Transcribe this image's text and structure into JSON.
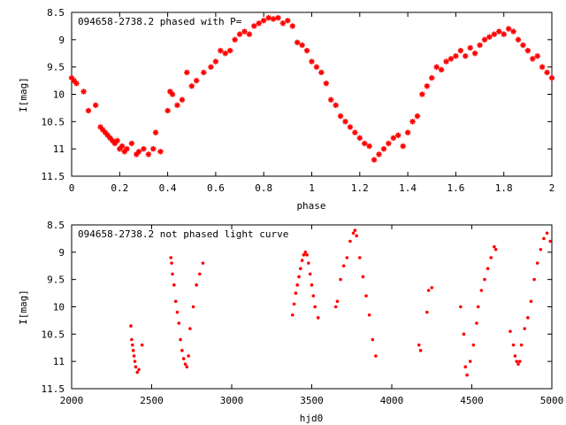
{
  "chart_data": [
    {
      "type": "scatter",
      "title": "094658-2738.2 phased with P=",
      "xlabel": "phase",
      "ylabel": "I[mag]",
      "xlim": [
        0,
        2
      ],
      "ylim": [
        11.5,
        8.5
      ],
      "y_inverted": true,
      "xticks": [
        "0",
        "0.2",
        "0.4",
        "0.6",
        "0.8",
        "1",
        "1.2",
        "1.4",
        "1.6",
        "1.8",
        "2"
      ],
      "yticks": [
        "8.5",
        "9",
        "9.5",
        "10",
        "10.5",
        "11",
        "11.5"
      ],
      "marker_color": "#ff0000",
      "marker": "star",
      "series": [
        {
          "x": [
            0.0,
            0.01,
            0.02,
            0.05,
            0.07,
            0.1,
            0.12,
            0.13,
            0.14,
            0.15,
            0.16,
            0.17,
            0.18,
            0.19,
            0.2,
            0.21,
            0.22,
            0.23,
            0.25,
            0.27,
            0.28,
            0.3,
            0.32,
            0.34,
            0.35,
            0.37,
            0.4,
            0.41,
            0.42,
            0.44,
            0.46,
            0.48,
            0.5,
            0.52,
            0.55,
            0.58,
            0.6,
            0.62,
            0.64,
            0.66,
            0.68,
            0.7,
            0.72,
            0.74,
            0.76,
            0.78,
            0.8,
            0.82,
            0.84,
            0.86,
            0.88,
            0.9,
            0.92,
            0.94,
            0.96,
            0.98,
            1.0,
            1.02,
            1.04,
            1.06,
            1.08,
            1.1,
            1.12,
            1.14,
            1.16,
            1.18,
            1.2,
            1.22,
            1.24,
            1.26,
            1.28,
            1.3,
            1.32,
            1.34,
            1.36,
            1.38,
            1.4,
            1.42,
            1.44,
            1.46,
            1.48,
            1.5,
            1.52,
            1.54,
            1.56,
            1.58,
            1.6,
            1.62,
            1.64,
            1.66,
            1.68,
            1.7,
            1.72,
            1.74,
            1.76,
            1.78,
            1.8,
            1.82,
            1.84,
            1.86,
            1.88,
            1.9,
            1.92,
            1.94,
            1.96,
            1.98,
            2.0
          ],
          "y": [
            9.7,
            9.75,
            9.8,
            9.95,
            10.3,
            10.2,
            10.6,
            10.65,
            10.7,
            10.75,
            10.8,
            10.85,
            10.9,
            10.85,
            11.0,
            10.95,
            11.05,
            11.0,
            10.9,
            11.1,
            11.05,
            11.0,
            11.1,
            11.0,
            10.7,
            11.05,
            10.3,
            9.95,
            10.0,
            10.2,
            10.1,
            9.6,
            9.85,
            9.75,
            9.6,
            9.5,
            9.4,
            9.2,
            9.25,
            9.2,
            9.0,
            8.9,
            8.85,
            8.9,
            8.75,
            8.7,
            8.65,
            8.6,
            8.62,
            8.6,
            8.7,
            8.65,
            8.75,
            9.05,
            9.1,
            9.2,
            9.4,
            9.5,
            9.6,
            9.8,
            10.1,
            10.2,
            10.4,
            10.5,
            10.6,
            10.7,
            10.8,
            10.9,
            10.95,
            11.2,
            11.1,
            11.0,
            10.9,
            10.8,
            10.75,
            10.95,
            10.7,
            10.5,
            10.4,
            10.0,
            9.85,
            9.7,
            9.5,
            9.55,
            9.4,
            9.35,
            9.3,
            9.2,
            9.3,
            9.15,
            9.25,
            9.1,
            9.0,
            8.95,
            8.9,
            8.85,
            8.9,
            8.8,
            8.85,
            9.0,
            9.1,
            9.2,
            9.35,
            9.3,
            9.5,
            9.6,
            9.7
          ]
        }
      ]
    },
    {
      "type": "scatter",
      "title": "094658-2738.2 not phased light curve",
      "xlabel": "hjd0",
      "ylabel": "I[mag]",
      "xlim": [
        2000,
        5000
      ],
      "ylim": [
        11.5,
        8.5
      ],
      "y_inverted": true,
      "xticks": [
        "2000",
        "2500",
        "3000",
        "3500",
        "4000",
        "4500",
        "5000"
      ],
      "yticks": [
        "8.5",
        "9",
        "9.5",
        "10",
        "10.5",
        "11",
        "11.5"
      ],
      "marker_color": "#ff0000",
      "marker": "dot",
      "series": [
        {
          "x": [
            2370,
            2375,
            2380,
            2385,
            2390,
            2395,
            2400,
            2410,
            2420,
            2440,
            2620,
            2625,
            2630,
            2640,
            2650,
            2660,
            2670,
            2680,
            2690,
            2700,
            2710,
            2720,
            2730,
            2740,
            2760,
            2780,
            2800,
            2820,
            3380,
            3390,
            3400,
            3410,
            3420,
            3430,
            3440,
            3450,
            3460,
            3470,
            3480,
            3490,
            3500,
            3510,
            3520,
            3540,
            3650,
            3660,
            3680,
            3700,
            3720,
            3740,
            3760,
            3770,
            3780,
            3800,
            3820,
            3840,
            3860,
            3880,
            3900,
            4170,
            4180,
            4220,
            4230,
            4250,
            4430,
            4450,
            4460,
            4470,
            4490,
            4510,
            4530,
            4540,
            4560,
            4580,
            4600,
            4620,
            4640,
            4650,
            4740,
            4760,
            4770,
            4780,
            4790,
            4800,
            4810,
            4830,
            4850,
            4870,
            4890,
            4910,
            4930,
            4950,
            4970,
            4990
          ],
          "y": [
            10.35,
            10.6,
            10.7,
            10.8,
            10.9,
            11.0,
            11.1,
            11.2,
            11.15,
            10.7,
            9.1,
            9.2,
            9.4,
            9.6,
            9.9,
            10.1,
            10.3,
            10.6,
            10.8,
            10.95,
            11.05,
            11.1,
            10.9,
            10.4,
            10.0,
            9.6,
            9.4,
            9.2,
            10.15,
            9.95,
            9.75,
            9.6,
            9.45,
            9.3,
            9.15,
            9.05,
            9.0,
            9.05,
            9.2,
            9.4,
            9.6,
            9.8,
            10.0,
            10.2,
            10.0,
            9.9,
            9.5,
            9.25,
            9.1,
            8.8,
            8.65,
            8.6,
            8.7,
            9.1,
            9.45,
            9.8,
            10.15,
            10.6,
            10.9,
            10.7,
            10.8,
            10.1,
            9.7,
            9.65,
            10.0,
            10.5,
            11.1,
            11.25,
            11.0,
            10.7,
            10.3,
            10.0,
            9.7,
            9.5,
            9.3,
            9.1,
            8.9,
            8.95,
            10.45,
            10.7,
            10.9,
            11.0,
            11.05,
            11.0,
            10.7,
            10.4,
            10.2,
            9.9,
            9.5,
            9.2,
            8.95,
            8.75,
            8.65,
            8.8
          ]
        }
      ]
    }
  ]
}
